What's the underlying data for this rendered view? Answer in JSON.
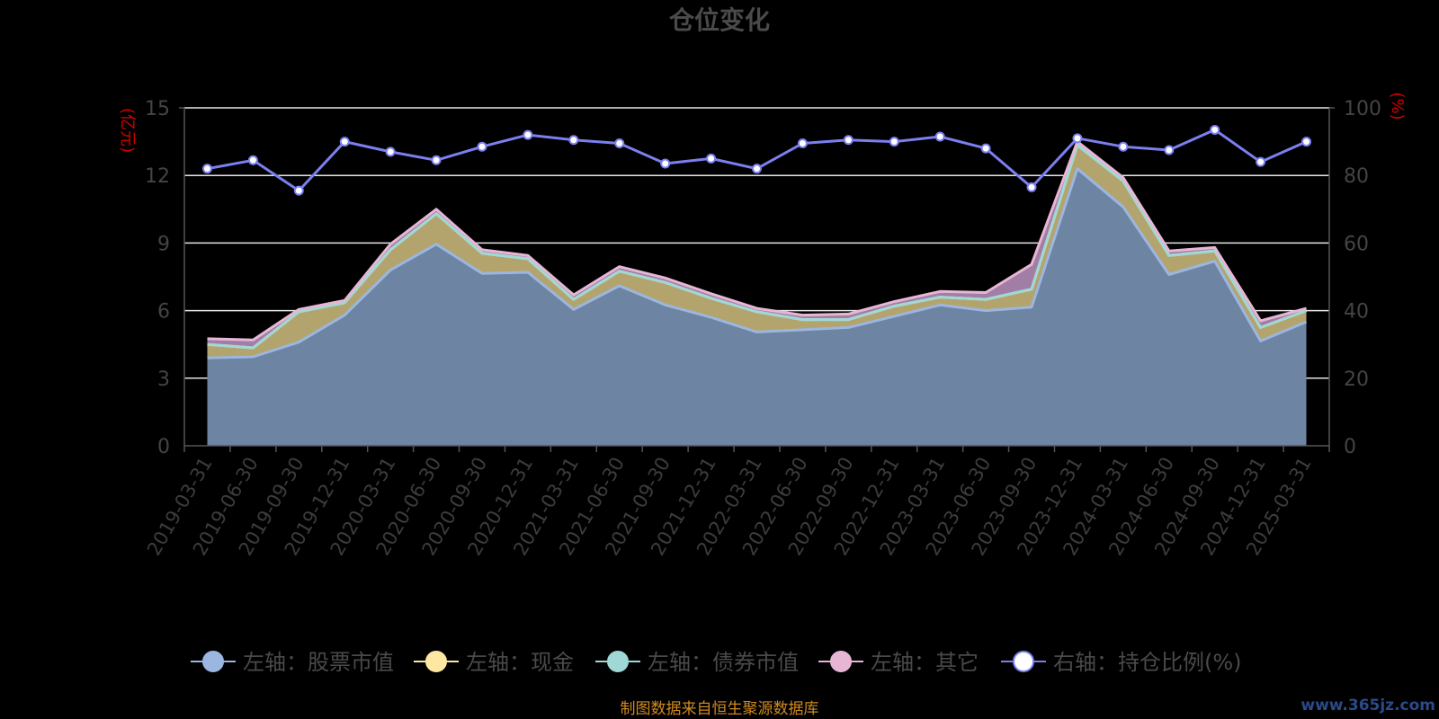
{
  "chart_data": {
    "type": "area",
    "title": "仓位变化",
    "left_unit": "(亿元)",
    "right_unit": "(%)",
    "categories": [
      "2019-03-31",
      "2019-06-30",
      "2019-09-30",
      "2019-12-31",
      "2020-03-31",
      "2020-06-30",
      "2020-09-30",
      "2020-12-31",
      "2021-03-31",
      "2021-06-30",
      "2021-09-30",
      "2021-12-31",
      "2022-03-31",
      "2022-06-30",
      "2022-09-30",
      "2022-12-31",
      "2023-03-31",
      "2023-06-30",
      "2023-09-30",
      "2023-12-31",
      "2024-03-31",
      "2024-06-30",
      "2024-09-30",
      "2024-12-31",
      "2025-03-31"
    ],
    "left_axis": {
      "min": 0,
      "max": 15,
      "ticks": [
        0,
        3,
        6,
        9,
        12,
        15
      ]
    },
    "right_axis": {
      "min": 0,
      "max": 100,
      "ticks": [
        0,
        20,
        40,
        60,
        80,
        100
      ]
    },
    "grid": true,
    "legend_position": "bottom",
    "series": [
      {
        "name": "左轴：股票市值",
        "axis": "left",
        "stacked": true,
        "color": "#9bb6e0",
        "fill": "#6e84a3",
        "values": [
          3.9,
          3.95,
          4.6,
          5.8,
          7.8,
          8.95,
          7.65,
          7.7,
          6.05,
          7.1,
          6.25,
          5.7,
          5.05,
          5.15,
          5.25,
          5.75,
          6.25,
          6.0,
          6.15,
          12.3,
          10.6,
          7.6,
          8.2,
          4.65,
          5.5
        ]
      },
      {
        "name": "左轴：现金",
        "axis": "left",
        "stacked": true,
        "color": "#fde7a3",
        "fill": "#b3a46e",
        "values": [
          0.6,
          0.4,
          1.35,
          0.55,
          0.9,
          1.35,
          0.9,
          0.6,
          0.45,
          0.65,
          1.0,
          0.85,
          0.9,
          0.45,
          0.35,
          0.45,
          0.35,
          0.5,
          0.8,
          1.05,
          1.15,
          0.85,
          0.45,
          0.6,
          0.5
        ]
      },
      {
        "name": "左轴：债券市值",
        "axis": "left",
        "stacked": true,
        "color": "#9fd8d6",
        "fill": "#7a9e9c",
        "values": [
          0,
          0,
          0,
          0,
          0,
          0,
          0,
          0,
          0,
          0,
          0,
          0,
          0,
          0,
          0,
          0,
          0,
          0,
          0,
          0,
          0,
          0,
          0,
          0,
          0
        ]
      },
      {
        "name": "左轴：其它",
        "axis": "left",
        "stacked": true,
        "color": "#e8b6d5",
        "fill": "#a07ea5",
        "values": [
          0.25,
          0.35,
          0.1,
          0.1,
          0.25,
          0.2,
          0.15,
          0.15,
          0.2,
          0.2,
          0.2,
          0.2,
          0.15,
          0.2,
          0.25,
          0.2,
          0.25,
          0.3,
          1.1,
          0.15,
          0.15,
          0.2,
          0.15,
          0.3,
          0.1
        ]
      },
      {
        "name": "右轴：持仓比例(%)",
        "axis": "right",
        "stacked": false,
        "color": "#7b7ff0",
        "fill": "none",
        "values": [
          82,
          84.5,
          75.5,
          90,
          87,
          84.5,
          88.5,
          92,
          90.5,
          89.5,
          83.5,
          85,
          82,
          89.5,
          90.5,
          90,
          91.5,
          88,
          76.5,
          91,
          88.5,
          87.5,
          93.5,
          84,
          90
        ]
      }
    ]
  },
  "footer": {
    "source": "制图数据来自恒生聚源数据库",
    "watermark": "www.365jz.com"
  }
}
